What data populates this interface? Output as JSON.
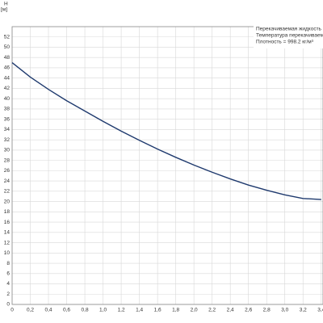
{
  "chart_data": {
    "type": "line",
    "y_label": "H",
    "y_unit": "[м]",
    "annotations": [
      "Перекачиваемая жидкость =",
      "Температура перекачиваем",
      "Плотность = 998.2 кг/м³"
    ],
    "x": [
      0,
      0.2,
      0.4,
      0.6,
      0.8,
      1.0,
      1.2,
      1.4,
      1.6,
      1.8,
      2.0,
      2.2,
      2.4,
      2.6,
      2.8,
      3.0,
      3.2,
      3.4
    ],
    "series": [
      {
        "color": "#1f3a6e",
        "values": [
          47,
          44.2,
          41.8,
          39.6,
          37.6,
          35.6,
          33.7,
          31.9,
          30.2,
          28.6,
          27.1,
          25.7,
          24.4,
          23.2,
          22.2,
          21.3,
          20.6,
          20.4
        ]
      }
    ],
    "xlim": [
      0,
      3.42
    ],
    "ylim": [
      0,
      54
    ],
    "xticks": [
      0,
      {
        "value": 0.2,
        "label": "0,2"
      },
      {
        "value": 0.4,
        "label": "0,4"
      },
      {
        "value": 0.6,
        "label": "0,6"
      },
      {
        "value": 0.8,
        "label": "0,8"
      },
      {
        "value": 1.0,
        "label": "1,0"
      },
      {
        "value": 1.2,
        "label": "1,2"
      },
      {
        "value": 1.4,
        "label": "1,4"
      },
      {
        "value": 1.6,
        "label": "1,6"
      },
      {
        "value": 1.8,
        "label": "1,8"
      },
      {
        "value": 2.0,
        "label": "2,0"
      },
      {
        "value": 2.2,
        "label": "2,2"
      },
      {
        "value": 2.4,
        "label": "2,4"
      },
      {
        "value": 2.6,
        "label": "2,6"
      },
      {
        "value": 2.8,
        "label": "2,8"
      },
      {
        "value": 3.0,
        "label": "3,0"
      },
      {
        "value": 3.2,
        "label": "3,2"
      },
      {
        "value": 3.4,
        "label": "3,4"
      }
    ],
    "yticks": [
      0,
      2,
      4,
      6,
      8,
      10,
      12,
      14,
      16,
      18,
      20,
      22,
      24,
      26,
      28,
      30,
      32,
      34,
      36,
      38,
      40,
      42,
      44,
      46,
      48,
      50,
      52
    ],
    "grid": true
  }
}
